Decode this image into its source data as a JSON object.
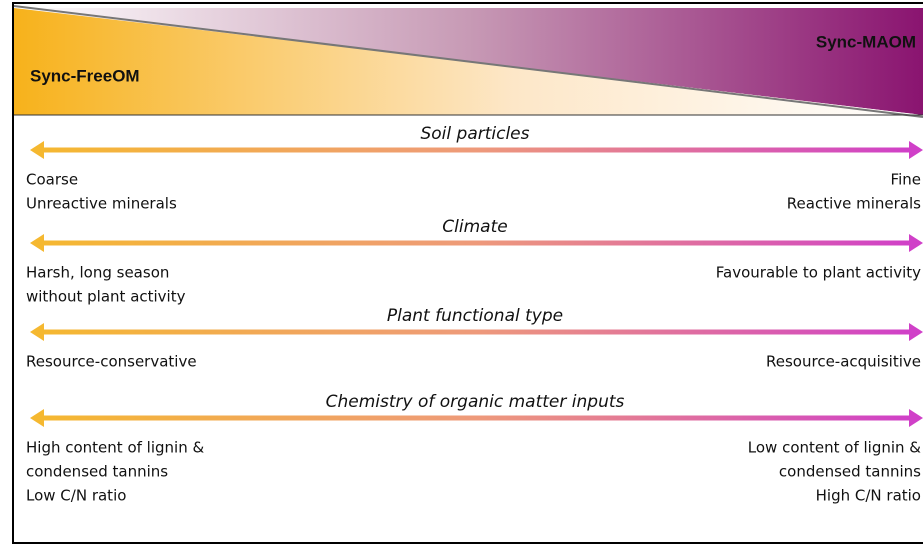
{
  "header": {
    "left_label": "Sync-FreeOM",
    "right_label": "Sync-MAOM"
  },
  "axes": [
    {
      "title": "Soil particles",
      "left": [
        "Coarse",
        "Unreactive minerals"
      ],
      "right": [
        "Fine",
        "Reactive minerals"
      ]
    },
    {
      "title": "Climate",
      "left": [
        "Harsh, long season",
        "without plant activity"
      ],
      "right": [
        "Favourable to plant activity"
      ]
    },
    {
      "title": "Plant functional type",
      "left": [
        "Resource-conservative"
      ],
      "right": [
        "Resource-acquisitive"
      ]
    },
    {
      "title": "Chemistry of organic matter inputs",
      "left": [
        "High content of lignin &",
        "condensed tannins",
        "Low C/N ratio"
      ],
      "right": [
        "Low content of lignin &",
        "condensed tannins",
        "High C/N ratio"
      ]
    }
  ]
}
